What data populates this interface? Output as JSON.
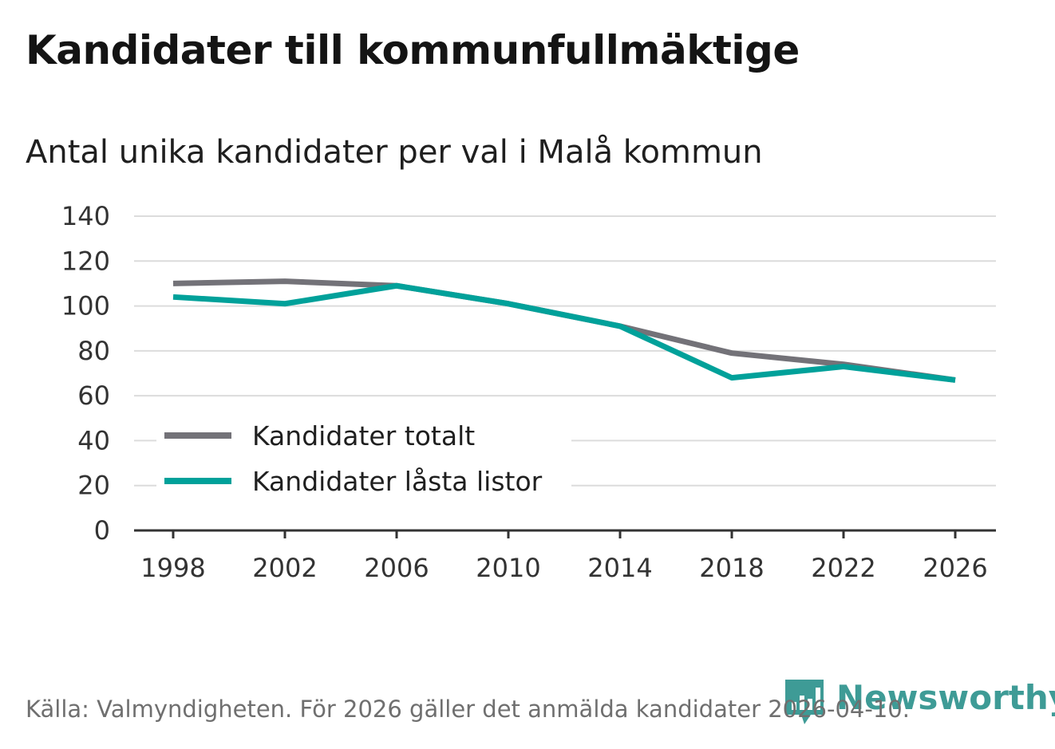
{
  "chart_data": {
    "type": "line",
    "title": "Kandidater till kommunfullmäktige",
    "subtitle": "Antal unika kandidater per val i Malå kommun",
    "categories": [
      "1998",
      "2002",
      "2006",
      "2010",
      "2014",
      "2018",
      "2022",
      "2026"
    ],
    "series": [
      {
        "name": "Kandidater totalt",
        "color": "#737278",
        "values": [
          110,
          111,
          109,
          101,
          91,
          79,
          74,
          67
        ]
      },
      {
        "name": "Kandidater låsta listor",
        "color": "#00a19a",
        "values": [
          104,
          101,
          109,
          101,
          91,
          68,
          73,
          67
        ]
      }
    ],
    "yticks": [
      "0",
      "20",
      "40",
      "60",
      "80",
      "100",
      "120",
      "140"
    ],
    "ylim": [
      0,
      140
    ],
    "grid": true,
    "legend_position": "bottom-left",
    "source": "Källa: Valmyndigheten. För 2026 gäller det anmälda kandidater 2026-04-10.",
    "brand": {
      "name": "Newsworthy",
      "color": "#3e9b96",
      "logo_icon": "bar-chart-speech-bubble-icon"
    }
  }
}
